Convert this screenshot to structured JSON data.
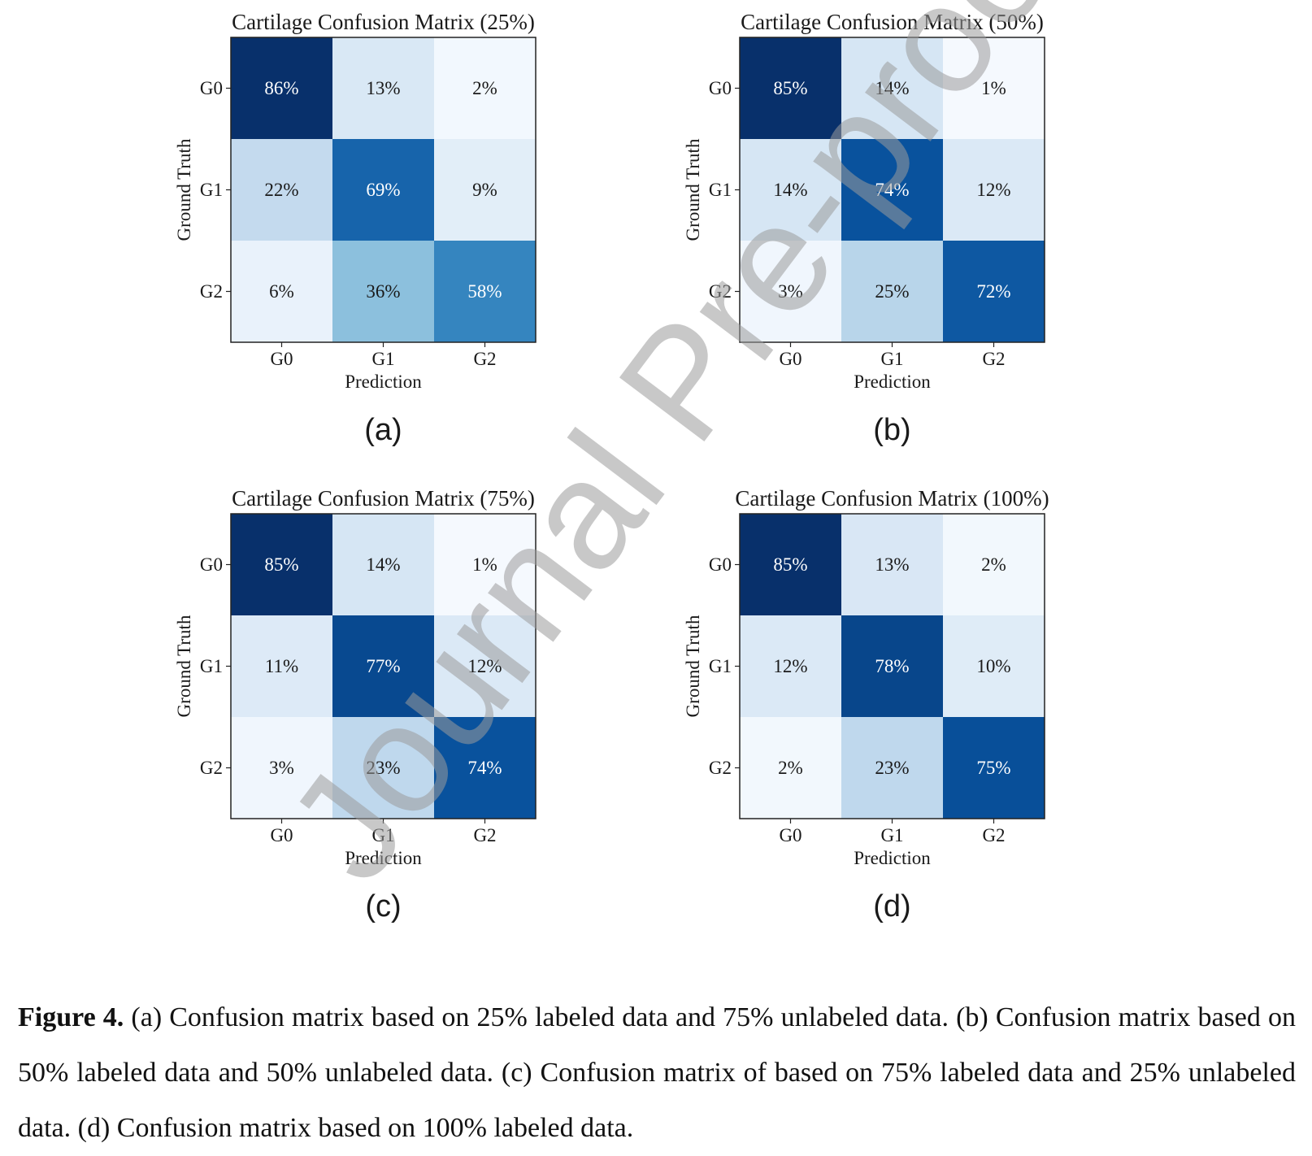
{
  "chart_data": [
    {
      "type": "heatmap",
      "panel_label": "(a)",
      "title": "Cartilage Confusion Matrix (25%)",
      "xlabel": "Prediction",
      "ylabel": "Ground Truth",
      "x_categories": [
        "G0",
        "G1",
        "G2"
      ],
      "y_categories": [
        "G0",
        "G1",
        "G2"
      ],
      "values": [
        [
          86,
          13,
          2
        ],
        [
          22,
          69,
          9
        ],
        [
          6,
          36,
          58
        ]
      ],
      "cell_labels": [
        [
          "86%",
          "13%",
          "2%"
        ],
        [
          "22%",
          "69%",
          "9%"
        ],
        [
          "6%",
          "36%",
          "58%"
        ]
      ],
      "colormap": "Blues",
      "vmin": 0,
      "vmax": 86
    },
    {
      "type": "heatmap",
      "panel_label": "(b)",
      "title": "Cartilage Confusion Matrix (50%)",
      "xlabel": "Prediction",
      "ylabel": "Ground Truth",
      "x_categories": [
        "G0",
        "G1",
        "G2"
      ],
      "y_categories": [
        "G0",
        "G1",
        "G2"
      ],
      "values": [
        [
          85,
          14,
          1
        ],
        [
          14,
          74,
          12
        ],
        [
          3,
          25,
          72
        ]
      ],
      "cell_labels": [
        [
          "85%",
          "14%",
          "1%"
        ],
        [
          "14%",
          "74%",
          "12%"
        ],
        [
          "3%",
          "25%",
          "72%"
        ]
      ],
      "colormap": "Blues",
      "vmin": 0,
      "vmax": 85
    },
    {
      "type": "heatmap",
      "panel_label": "(c)",
      "title": "Cartilage Confusion Matrix (75%)",
      "xlabel": "Prediction",
      "ylabel": "Ground Truth",
      "x_categories": [
        "G0",
        "G1",
        "G2"
      ],
      "y_categories": [
        "G0",
        "G1",
        "G2"
      ],
      "values": [
        [
          85,
          14,
          1
        ],
        [
          11,
          77,
          12
        ],
        [
          3,
          23,
          74
        ]
      ],
      "cell_labels": [
        [
          "85%",
          "14%",
          "1%"
        ],
        [
          "11%",
          "77%",
          "12%"
        ],
        [
          "3%",
          "23%",
          "74%"
        ]
      ],
      "colormap": "Blues",
      "vmin": 0,
      "vmax": 85
    },
    {
      "type": "heatmap",
      "panel_label": "(d)",
      "title": "Cartilage Confusion Matrix (100%)",
      "xlabel": "Prediction",
      "ylabel": "Ground Truth",
      "x_categories": [
        "G0",
        "G1",
        "G2"
      ],
      "y_categories": [
        "G0",
        "G1",
        "G2"
      ],
      "values": [
        [
          85,
          13,
          2
        ],
        [
          12,
          78,
          10
        ],
        [
          2,
          23,
          75
        ]
      ],
      "cell_labels": [
        [
          "85%",
          "13%",
          "2%"
        ],
        [
          "12%",
          "78%",
          "10%"
        ],
        [
          "2%",
          "23%",
          "75%"
        ]
      ],
      "colormap": "Blues",
      "vmin": 0,
      "vmax": 85
    }
  ],
  "watermark": "Journal Pre-proof",
  "caption": {
    "label": "Figure 4.",
    "text": " (a) Confusion matrix based on 25% labeled data and 75% unlabeled data. (b) Confusion matrix based on 50% labeled data and 50% unlabeled data. (c) Confusion matrix of based on 75% labeled data and 25% unlabeled data. (d) Confusion matrix based on 100% labeled data."
  },
  "colors": {
    "cmap_light": "#f7fbff",
    "cmap_dark": "#08306b",
    "text_dark": "#1a1a1a",
    "text_light": "#ffffff"
  }
}
